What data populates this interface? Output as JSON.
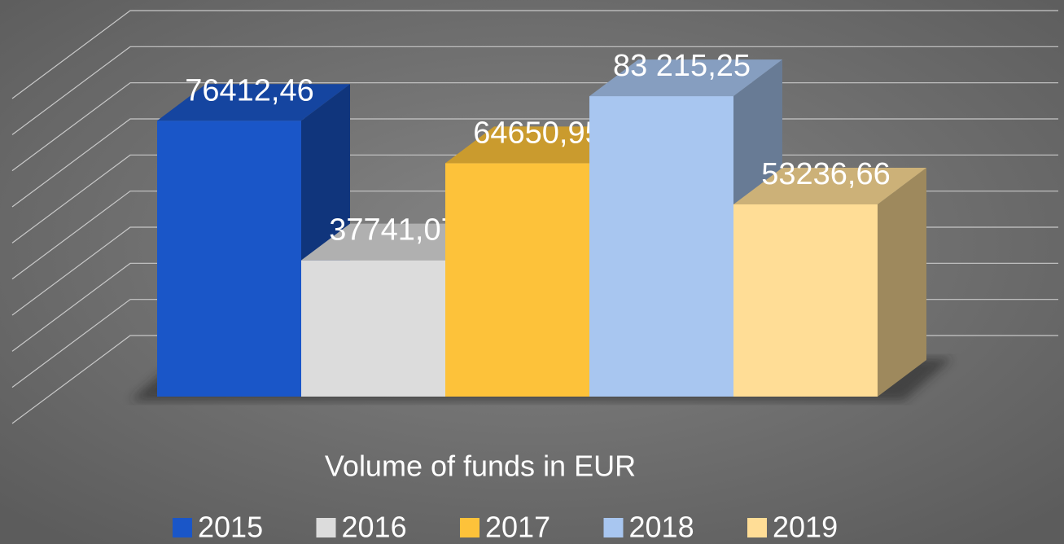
{
  "chart_data": {
    "type": "bar3d",
    "title": "Volume of funds in EUR",
    "ylim": [
      0,
      90000
    ],
    "yticks": [
      0,
      10000,
      20000,
      30000,
      40000,
      50000,
      60000,
      70000,
      80000,
      90000
    ],
    "grid": true,
    "legend": "bottom",
    "series": [
      {
        "name": "2015",
        "color": "#1a56c8",
        "values": [
          76412.46
        ],
        "value_labels": [
          "76412,46"
        ]
      },
      {
        "name": "2016",
        "color": "#dcdcdc",
        "values": [
          37741.07
        ],
        "value_labels": [
          "37741,07"
        ]
      },
      {
        "name": "2017",
        "color": "#fdc23a",
        "values": [
          64650.95
        ],
        "value_labels": [
          "64650,95"
        ]
      },
      {
        "name": "2018",
        "color": "#a8c6f0",
        "values": [
          83215.25
        ],
        "value_labels": [
          "83 215,25"
        ]
      },
      {
        "name": "2019",
        "color": "#ffdd96",
        "values": [
          53236.66
        ],
        "value_labels": [
          "53236,66"
        ]
      }
    ]
  }
}
